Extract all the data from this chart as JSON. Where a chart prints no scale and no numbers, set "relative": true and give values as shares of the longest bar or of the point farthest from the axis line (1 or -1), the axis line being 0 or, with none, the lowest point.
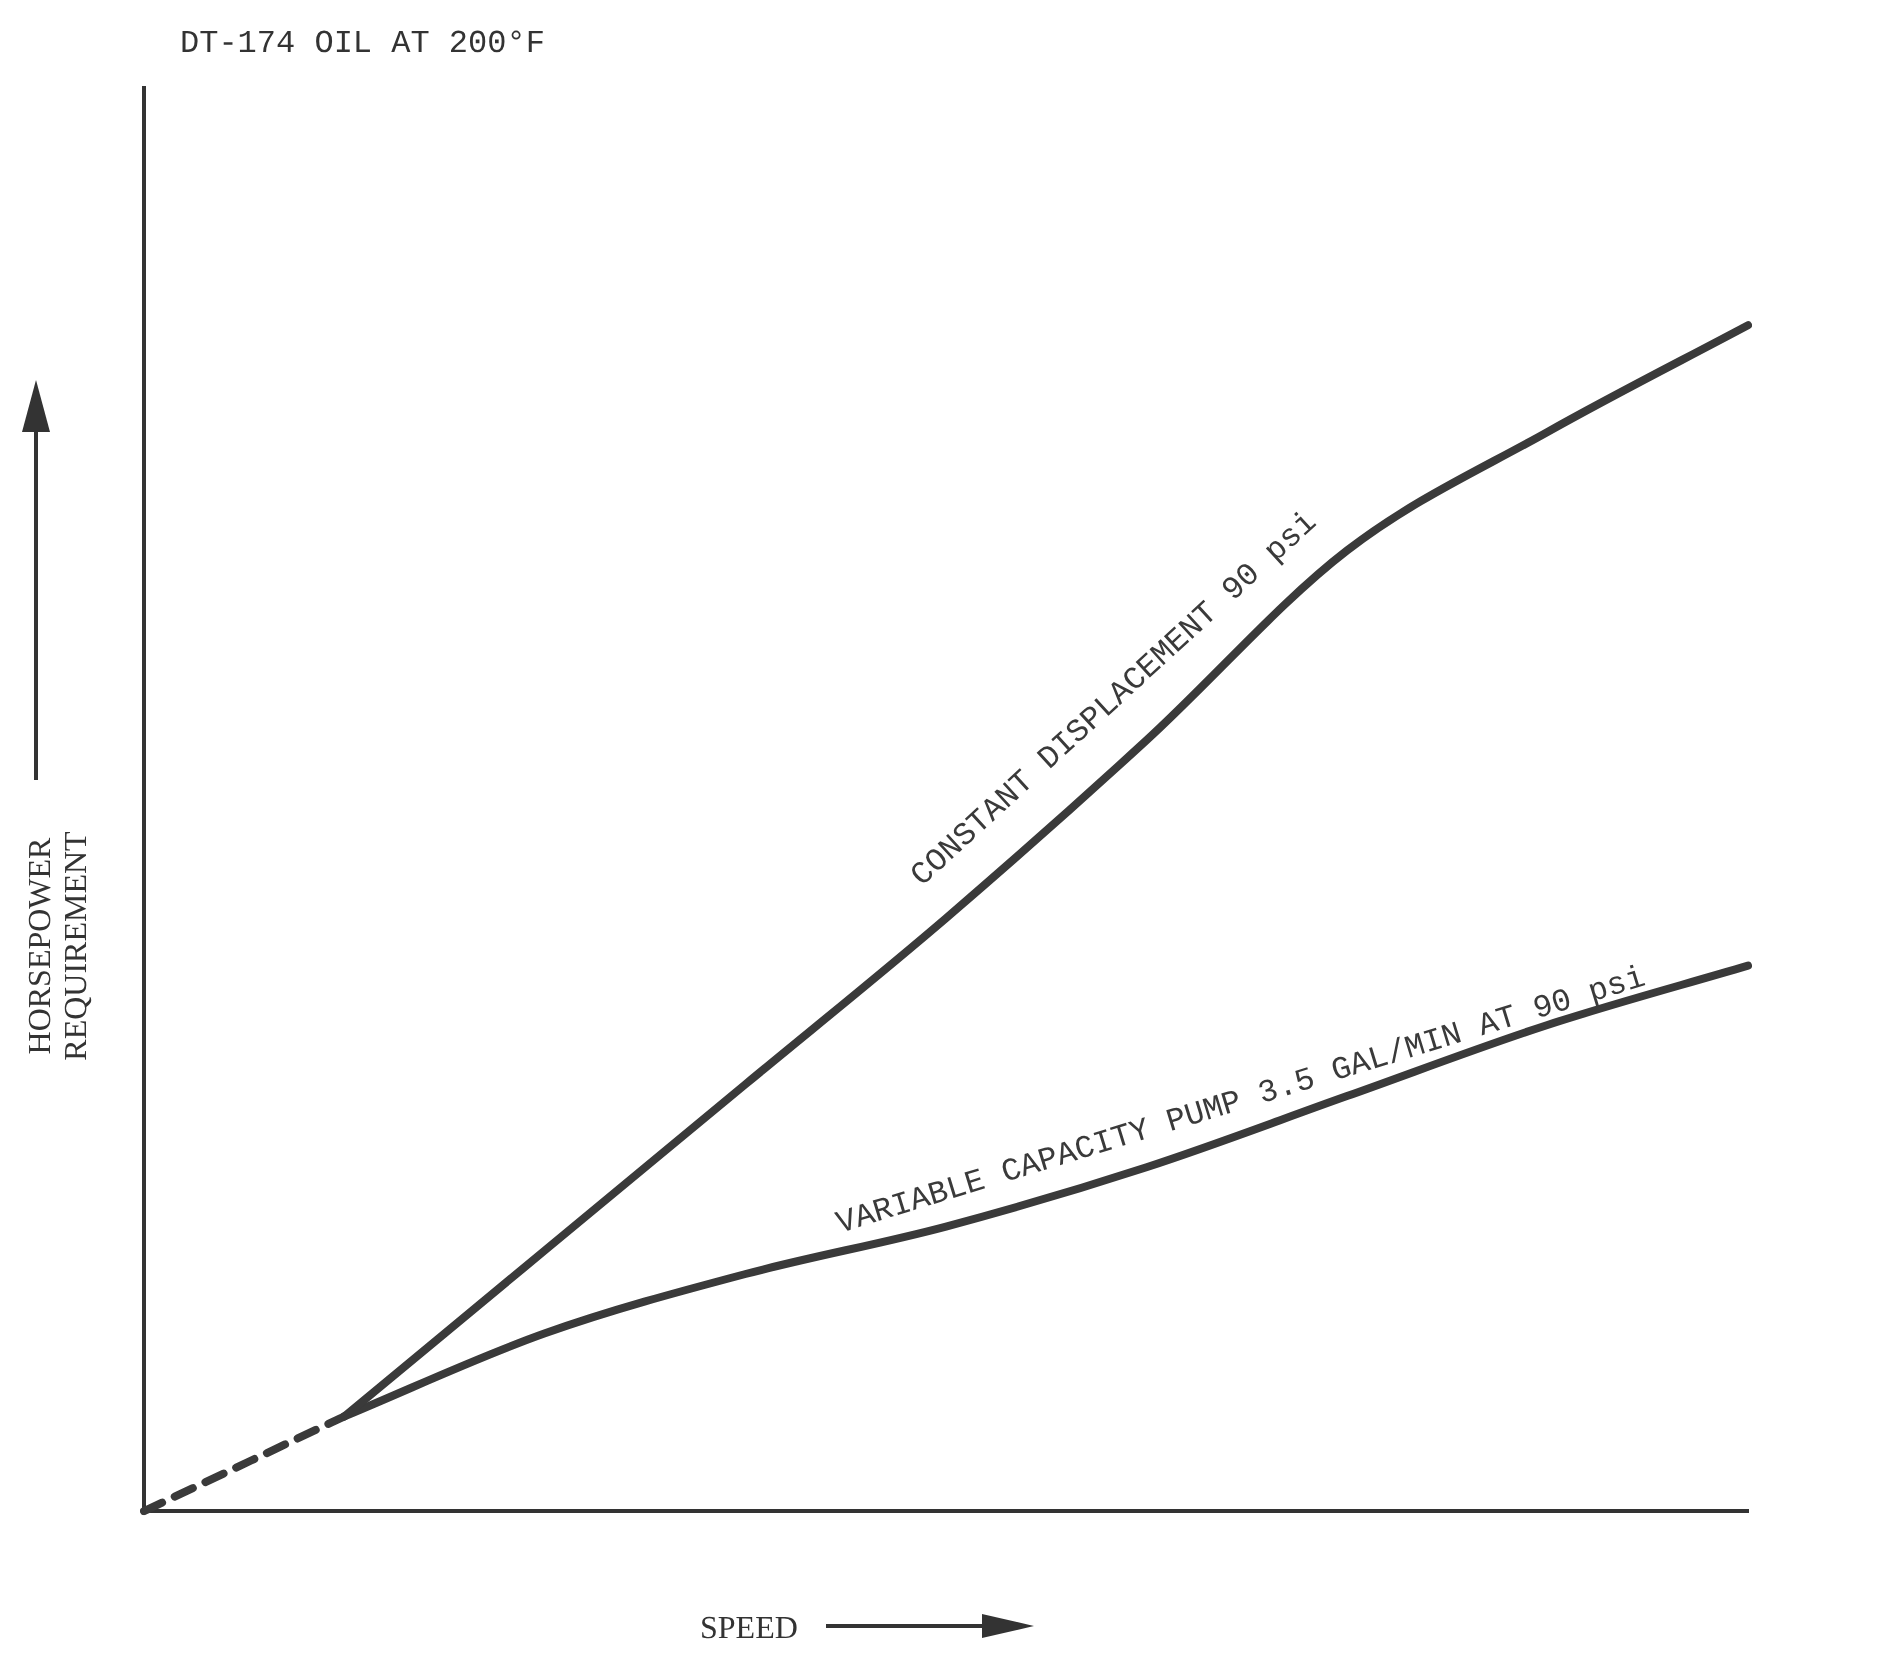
{
  "chart_data": {
    "type": "line",
    "relative": true,
    "title": "DT-174 OIL AT 200°F",
    "xlabel": "SPEED",
    "ylabel": "HORSEPOWER REQUIREMENT",
    "categories": [
      null,
      null,
      null,
      null,
      null,
      null,
      null,
      null,
      null
    ],
    "series": [
      {
        "name": "CONSTANT DISPLACEMENT 90 psi",
        "color": "#3a3a3a",
        "values": [
          null,
          0.08,
          0.22,
          0.36,
          0.5,
          0.65,
          0.81,
          0.91,
          1.0
        ]
      },
      {
        "name": "VARIABLE CAPACITY PUMP 3.5 GAL/MIN AT 90 psi",
        "color": "#3a3a3a",
        "values": [
          null,
          0.08,
          0.15,
          0.2,
          0.24,
          0.29,
          0.35,
          0.41,
          0.46
        ]
      },
      {
        "color": "#3a3a3a",
        "line_style": "dashed",
        "values": [
          0,
          0.08,
          null,
          null,
          null,
          null,
          null,
          null,
          null
        ]
      }
    ],
    "grid": false,
    "legend": false,
    "marker": "none"
  }
}
